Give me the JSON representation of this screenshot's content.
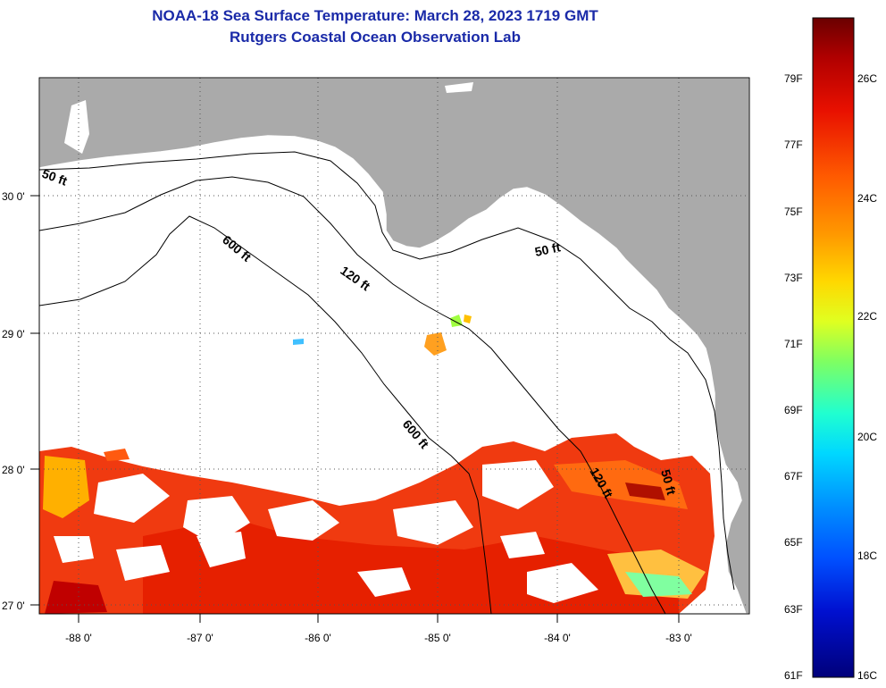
{
  "title_line1": "NOAA-18 Sea Surface Temperature:  March 28, 2023 1719 GMT",
  "title_line2": "Rutgers Coastal Ocean Observation Lab",
  "lat_labels": [
    "30 0'",
    "29 0'",
    "28 0'",
    "27 0'"
  ],
  "lon_labels": [
    "-88 0'",
    "-87 0'",
    "-86 0'",
    "-85 0'",
    "-84 0'",
    "-83 0'"
  ],
  "contour_labels": [
    "50 ft",
    "600 ft",
    "120 ft",
    "50 ft",
    "600 ft",
    "120 ft",
    "50 ft"
  ],
  "colorbar": {
    "fahrenheit_labels": [
      "79F",
      "77F",
      "75F",
      "73F",
      "71F",
      "69F",
      "67F",
      "65F",
      "63F",
      "61F"
    ],
    "celsius_labels": [
      "26C",
      "24C",
      "22C",
      "20C",
      "18C",
      "16C"
    ],
    "colors": [
      "#6a0000",
      "#d40000",
      "#ff3000",
      "#ff8a00",
      "#ffd000",
      "#d8ff20",
      "#60ff80",
      "#00f0f0",
      "#00a0ff",
      "#0040ff",
      "#0000c0",
      "#00007a"
    ]
  },
  "colors": {
    "land": "#aaaaaa",
    "ocean_no_data": "#ffffff",
    "sst_warm": "#f03010",
    "title": "#1a2aa8"
  }
}
